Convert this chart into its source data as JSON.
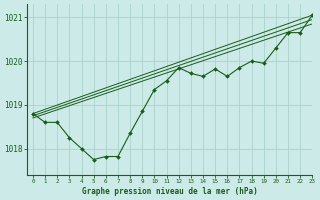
{
  "title": "Graphe pression niveau de la mer (hPa)",
  "bg_color": "#cceae7",
  "grid_color": "#aad4cc",
  "line_color": "#1a5c1a",
  "marker_color": "#1a5c1a",
  "xlim": [
    -0.5,
    23
  ],
  "ylim": [
    1017.4,
    1021.3
  ],
  "yticks": [
    1018,
    1019,
    1020,
    1021
  ],
  "xticks": [
    0,
    1,
    2,
    3,
    4,
    5,
    6,
    7,
    8,
    9,
    10,
    11,
    12,
    13,
    14,
    15,
    16,
    17,
    18,
    19,
    20,
    21,
    22,
    23
  ],
  "line_straight1": {
    "x": [
      0,
      23
    ],
    "y": [
      1018.8,
      1021.05
    ]
  },
  "line_straight2": {
    "x": [
      0,
      23
    ],
    "y": [
      1018.75,
      1020.95
    ]
  },
  "line_straight3": {
    "x": [
      0,
      23
    ],
    "y": [
      1018.7,
      1020.85
    ]
  },
  "series_main": {
    "x": [
      0,
      1,
      2,
      3,
      4,
      5,
      6,
      7,
      8,
      9,
      10,
      11,
      12,
      13,
      14,
      15,
      16,
      17,
      18,
      19,
      20,
      21,
      22,
      23
    ],
    "y": [
      1018.8,
      1018.6,
      1018.6,
      1018.25,
      1018.0,
      1017.75,
      1017.82,
      1017.82,
      1018.35,
      1018.85,
      1019.35,
      1019.55,
      1019.85,
      1019.72,
      1019.65,
      1019.82,
      1019.65,
      1019.85,
      1020.0,
      1019.95,
      1020.3,
      1020.65,
      1020.65,
      1021.05
    ]
  }
}
